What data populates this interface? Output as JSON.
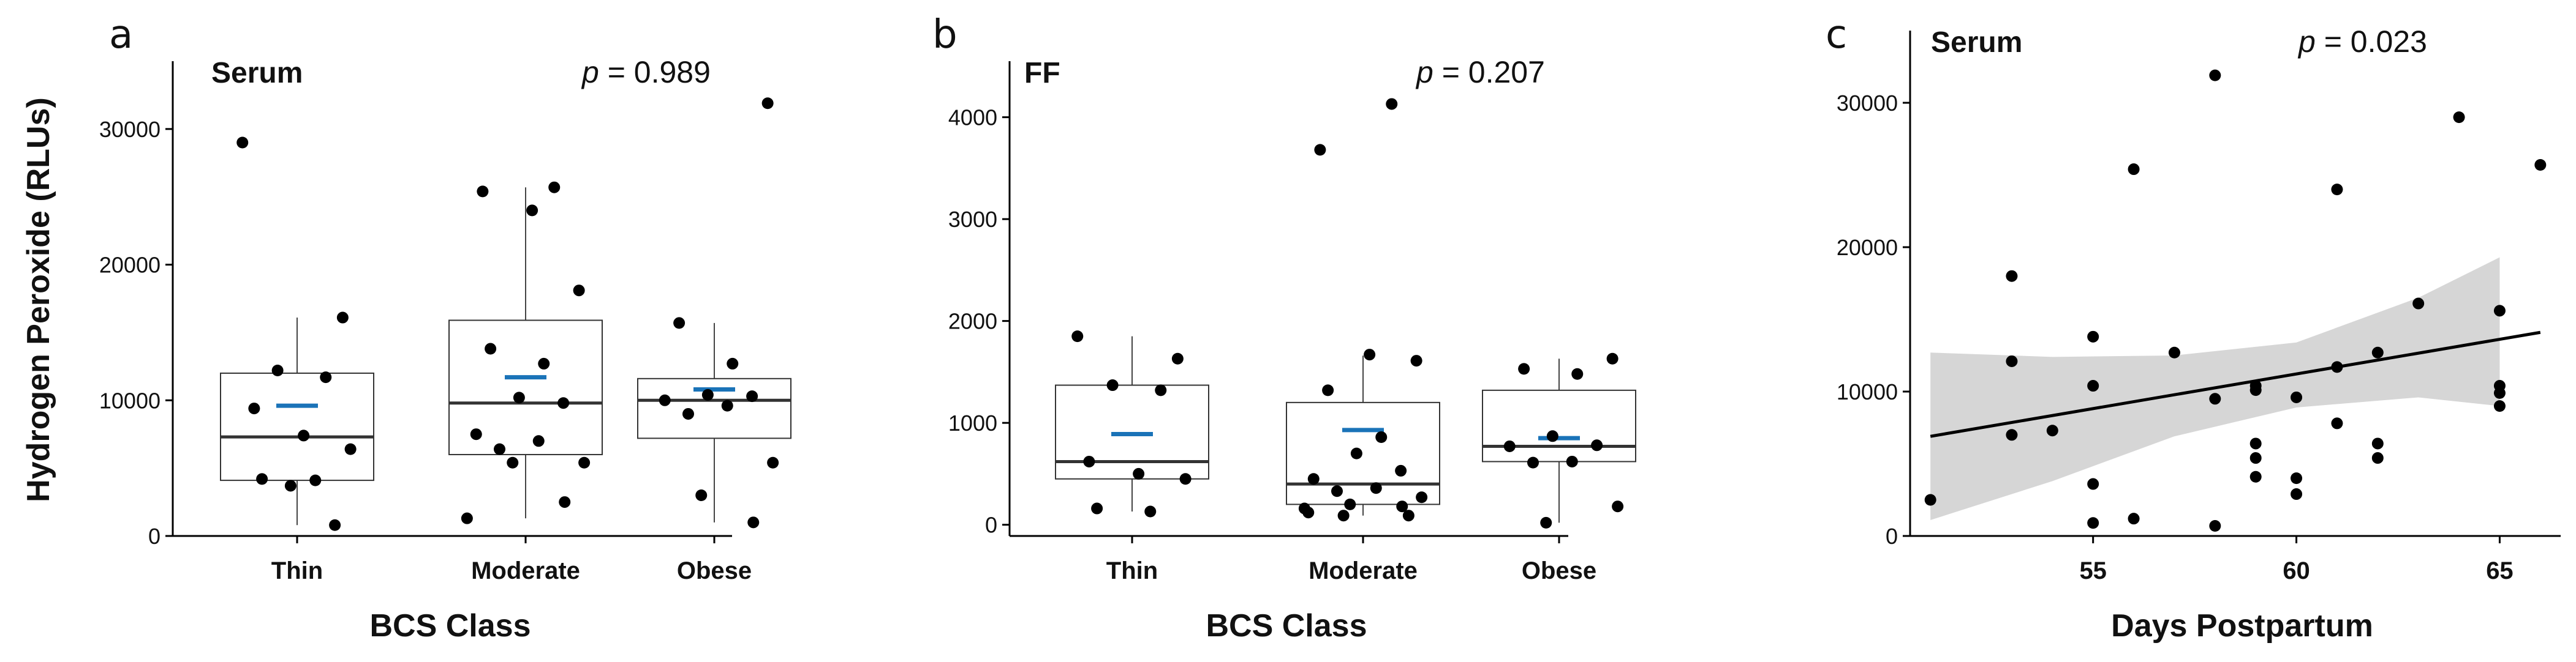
{
  "figure": {
    "shared_ylabel": "Hydrogen Peroxide (RLUs)"
  },
  "chart_data": [
    {
      "type": "box",
      "panel": "a",
      "title": "Serum",
      "p_value": "0.989",
      "xlabel": "BCS Class",
      "ylabel": "Hydrogen Peroxide (RLUs)",
      "ylim": [
        0,
        35000
      ],
      "yticks": [
        0,
        10000,
        20000,
        30000
      ],
      "ytick_labels": [
        "0",
        "10000",
        "20000",
        "30000"
      ],
      "categories": [
        "Thin",
        "Moderate",
        "Obese"
      ],
      "boxes": [
        {
          "category": "Thin",
          "whisker_low": 800,
          "q1": 4100,
          "median": 7300,
          "q3": 12000,
          "whisker_high": 16100,
          "mean": 9600
        },
        {
          "category": "Moderate",
          "whisker_low": 1300,
          "q1": 6000,
          "median": 9800,
          "q3": 15900,
          "whisker_high": 25700,
          "mean": 11700
        },
        {
          "category": "Obese",
          "whisker_low": 1000,
          "q1": 7200,
          "median": 10000,
          "q3": 11600,
          "whisker_high": 15700,
          "mean": 10800
        }
      ],
      "points": [
        {
          "category": "Thin",
          "values": [
            29000,
            16100,
            12200,
            11700,
            9400,
            7400,
            6400,
            4200,
            4100,
            3700,
            800
          ]
        },
        {
          "category": "Moderate",
          "values": [
            25700,
            25400,
            24000,
            18100,
            13800,
            12700,
            10200,
            9800,
            7500,
            7000,
            6400,
            5400,
            5400,
            2500,
            1300
          ]
        },
        {
          "category": "Obese",
          "values": [
            31900,
            15700,
            12700,
            10400,
            10300,
            10000,
            9600,
            9000,
            5400,
            3000,
            1000
          ]
        }
      ]
    },
    {
      "type": "box",
      "panel": "b",
      "title": "FF",
      "p_value": "0.207",
      "xlabel": "BCS Class",
      "ylim": [
        -110,
        4550
      ],
      "yticks": [
        0,
        1000,
        2000,
        3000,
        4000
      ],
      "ytick_labels": [
        "0",
        "1000",
        "2000",
        "3000",
        "4000"
      ],
      "categories": [
        "Thin",
        "Moderate",
        "Obese"
      ],
      "boxes": [
        {
          "category": "Thin",
          "whisker_low": 130,
          "q1": 450,
          "median": 620,
          "q3": 1370,
          "whisker_high": 1850,
          "mean": 890
        },
        {
          "category": "Moderate",
          "whisker_low": 90,
          "q1": 200,
          "median": 400,
          "q3": 1200,
          "whisker_high": 1660,
          "mean": 930
        },
        {
          "category": "Obese",
          "whisker_low": 20,
          "q1": 620,
          "median": 770,
          "q3": 1320,
          "whisker_high": 1630,
          "mean": 850
        }
      ],
      "points": [
        {
          "category": "Thin",
          "values": [
            1850,
            1630,
            1370,
            1320,
            620,
            500,
            450,
            160,
            130
          ]
        },
        {
          "category": "Moderate",
          "values": [
            4130,
            3680,
            1670,
            1610,
            1320,
            860,
            700,
            530,
            450,
            360,
            330,
            270,
            200,
            180,
            160,
            120,
            90,
            90
          ]
        },
        {
          "category": "Obese",
          "values": [
            1630,
            1530,
            1480,
            870,
            780,
            770,
            620,
            610,
            180,
            20
          ]
        }
      ]
    },
    {
      "type": "scatter",
      "panel": "c",
      "title": "Serum",
      "p_value": "0.023",
      "xlabel": "Days Postpartum",
      "xlim": [
        50.5,
        66.5
      ],
      "ylim": [
        0,
        35000
      ],
      "xticks": [
        55,
        60,
        65
      ],
      "xtick_labels": [
        "55",
        "60",
        "65"
      ],
      "yticks": [
        0,
        10000,
        20000,
        30000
      ],
      "ytick_labels": [
        "0",
        "10000",
        "20000",
        "30000"
      ],
      "regression": {
        "x0": 51,
        "y0": 6900,
        "x1": 66,
        "y1": 14100
      },
      "confidence_band": {
        "x": [
          51,
          54,
          57,
          60,
          63,
          65
        ],
        "upper": [
          12700,
          12400,
          12500,
          13400,
          16500,
          19300
        ],
        "lower": [
          1100,
          3800,
          6900,
          8900,
          9600,
          9000
        ]
      },
      "points": [
        {
          "x": 51,
          "y": 2500
        },
        {
          "x": 53,
          "y": 18000
        },
        {
          "x": 53,
          "y": 12100
        },
        {
          "x": 53,
          "y": 7000
        },
        {
          "x": 54,
          "y": 7300
        },
        {
          "x": 55,
          "y": 13800
        },
        {
          "x": 55,
          "y": 10400
        },
        {
          "x": 55,
          "y": 3600
        },
        {
          "x": 55,
          "y": 900
        },
        {
          "x": 56,
          "y": 25400
        },
        {
          "x": 56,
          "y": 1200
        },
        {
          "x": 57,
          "y": 12700
        },
        {
          "x": 58,
          "y": 31900
        },
        {
          "x": 58,
          "y": 9500
        },
        {
          "x": 58,
          "y": 700
        },
        {
          "x": 59,
          "y": 10400
        },
        {
          "x": 59,
          "y": 10100
        },
        {
          "x": 59,
          "y": 6400
        },
        {
          "x": 59,
          "y": 5400
        },
        {
          "x": 59,
          "y": 4100
        },
        {
          "x": 60,
          "y": 9600
        },
        {
          "x": 60,
          "y": 4000
        },
        {
          "x": 60,
          "y": 2900
        },
        {
          "x": 61,
          "y": 24000
        },
        {
          "x": 61,
          "y": 11700
        },
        {
          "x": 61,
          "y": 7800
        },
        {
          "x": 62,
          "y": 12700
        },
        {
          "x": 62,
          "y": 6400
        },
        {
          "x": 62,
          "y": 5400
        },
        {
          "x": 63,
          "y": 16100
        },
        {
          "x": 64,
          "y": 29000
        },
        {
          "x": 65,
          "y": 15600
        },
        {
          "x": 65,
          "y": 10400
        },
        {
          "x": 65,
          "y": 9900
        },
        {
          "x": 65,
          "y": 9000
        },
        {
          "x": 66,
          "y": 25700
        }
      ]
    }
  ],
  "colors": {
    "mean_marker": "#1a73b8",
    "point": "#000000",
    "band": "#d6d6d6",
    "box_stroke": "#333333",
    "axis": "#000000"
  }
}
